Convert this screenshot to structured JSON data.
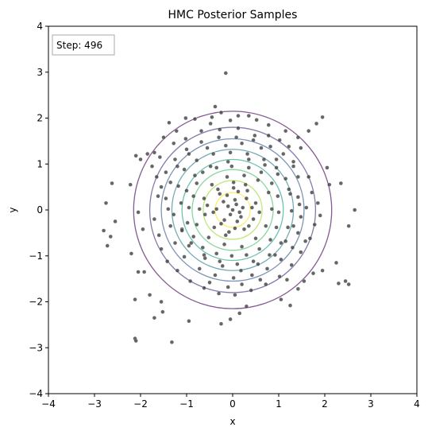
{
  "chart_data": {
    "type": "scatter",
    "title": "HMC Posterior Samples",
    "xlabel": "x",
    "ylabel": "y",
    "xlim": [
      -4,
      4
    ],
    "ylim": [
      -4,
      4
    ],
    "xticks": [
      -4,
      -3,
      -2,
      -1,
      0,
      1,
      2,
      3,
      4
    ],
    "yticks": [
      -4,
      -3,
      -2,
      -1,
      0,
      1,
      2,
      3,
      4
    ],
    "xtick_labels": [
      "−4",
      "−3",
      "−2",
      "−1",
      "0",
      "1",
      "2",
      "3",
      "4"
    ],
    "ytick_labels": [
      "−4",
      "−3",
      "−2",
      "−1",
      "0",
      "1",
      "2",
      "3",
      "4"
    ],
    "grid": false,
    "annotation": "Step: 496",
    "contours": {
      "center": [
        0,
        0
      ],
      "radii": [
        2.15,
        1.8,
        1.55,
        1.32,
        1.1,
        0.88,
        0.64,
        0.38
      ],
      "colors": [
        "#440154",
        "#46327e",
        "#365c8d",
        "#277f8e",
        "#1fa187",
        "#4ac16d",
        "#a0da39",
        "#fde725"
      ]
    },
    "point_color": "#404040",
    "series": [
      {
        "points": [
          [
            -0.15,
            2.98
          ],
          [
            -0.38,
            2.25
          ],
          [
            -0.45,
            2.02
          ],
          [
            -0.05,
            1.95
          ],
          [
            0.35,
            2.05
          ],
          [
            0.52,
            1.96
          ],
          [
            1.82,
            1.88
          ],
          [
            1.95,
            2.02
          ],
          [
            1.65,
            1.72
          ],
          [
            -0.48,
            1.88
          ],
          [
            -1.5,
            1.58
          ],
          [
            -1.7,
            1.25
          ],
          [
            -1.58,
            1.15
          ],
          [
            -1.28,
            1.45
          ],
          [
            -1.02,
            1.55
          ],
          [
            -0.68,
            1.72
          ],
          [
            -0.28,
            1.75
          ],
          [
            0.12,
            1.78
          ],
          [
            0.48,
            1.62
          ],
          [
            0.78,
            1.62
          ],
          [
            1.02,
            1.52
          ],
          [
            1.22,
            1.38
          ],
          [
            1.32,
            1.05
          ],
          [
            0.95,
            1.1
          ],
          [
            0.62,
            1.35
          ],
          [
            0.2,
            1.45
          ],
          [
            -0.15,
            1.4
          ],
          [
            -0.55,
            1.35
          ],
          [
            -0.95,
            1.22
          ],
          [
            -1.2,
            0.95
          ],
          [
            -1.35,
            0.6
          ],
          [
            -1.45,
            0.25
          ],
          [
            -1.28,
            -0.1
          ],
          [
            -1.1,
            -0.42
          ],
          [
            -0.95,
            -0.78
          ],
          [
            -0.6,
            -1.05
          ],
          [
            -0.22,
            -1.22
          ],
          [
            0.18,
            -1.32
          ],
          [
            0.55,
            -1.18
          ],
          [
            0.92,
            -0.98
          ],
          [
            1.15,
            -0.68
          ],
          [
            1.32,
            -0.35
          ],
          [
            1.45,
            0.12
          ],
          [
            1.22,
            0.45
          ],
          [
            0.98,
            0.78
          ],
          [
            0.7,
            0.98
          ],
          [
            0.35,
            1.1
          ],
          [
            -0.1,
            1.05
          ],
          [
            -0.48,
            0.95
          ],
          [
            -0.82,
            0.75
          ],
          [
            -1.0,
            0.42
          ],
          [
            -0.95,
            0.05
          ],
          [
            -0.78,
            -0.32
          ],
          [
            -0.52,
            -0.6
          ],
          [
            -0.18,
            -0.75
          ],
          [
            0.2,
            -0.8
          ],
          [
            0.5,
            -0.62
          ],
          [
            0.72,
            -0.35
          ],
          [
            0.85,
            0.02
          ],
          [
            0.78,
            0.38
          ],
          [
            0.55,
            0.65
          ],
          [
            0.25,
            0.75
          ],
          [
            -0.12,
            0.72
          ],
          [
            -0.45,
            0.55
          ],
          [
            -0.62,
            0.25
          ],
          [
            -0.6,
            -0.1
          ],
          [
            -0.4,
            -0.38
          ],
          [
            -0.08,
            -0.48
          ],
          [
            0.25,
            -0.42
          ],
          [
            0.45,
            -0.2
          ],
          [
            0.5,
            0.15
          ],
          [
            0.32,
            0.42
          ],
          [
            0.02,
            0.48
          ],
          [
            -0.28,
            0.35
          ],
          [
            -0.35,
            0.02
          ],
          [
            -0.18,
            -0.22
          ],
          [
            0.1,
            -0.25
          ],
          [
            0.22,
            0.05
          ],
          [
            0.05,
            0.22
          ],
          [
            -0.1,
            0.08
          ],
          [
            0.0,
            0.0
          ],
          [
            0.15,
            -0.05
          ],
          [
            -0.05,
            -0.1
          ],
          [
            0.08,
            0.12
          ],
          [
            -0.2,
            0.18
          ],
          [
            0.3,
            0.25
          ],
          [
            -0.25,
            -0.3
          ],
          [
            0.35,
            -0.35
          ],
          [
            0.12,
            0.4
          ],
          [
            -0.32,
            0.45
          ],
          [
            0.18,
            -0.15
          ],
          [
            -0.12,
            0.32
          ],
          [
            0.42,
            0.05
          ],
          [
            -0.42,
            -0.05
          ],
          [
            0.05,
            -0.4
          ],
          [
            0.28,
            0.55
          ],
          [
            -0.15,
            -0.55
          ],
          [
            0.58,
            -0.05
          ],
          [
            -0.55,
            0.1
          ],
          [
            0.02,
            0.6
          ],
          [
            -2.75,
            0.15
          ],
          [
            -2.8,
            -0.45
          ],
          [
            -2.72,
            -0.78
          ],
          [
            -2.65,
            -0.58
          ],
          [
            -2.55,
            -0.25
          ],
          [
            -2.62,
            0.58
          ],
          [
            -2.22,
            0.55
          ],
          [
            -2.1,
            1.18
          ],
          [
            -2.0,
            1.1
          ],
          [
            -1.85,
            1.22
          ],
          [
            -2.05,
            -0.05
          ],
          [
            -1.95,
            -0.42
          ],
          [
            -2.2,
            -0.95
          ],
          [
            -2.05,
            -1.35
          ],
          [
            -1.92,
            -1.35
          ],
          [
            -2.12,
            -1.95
          ],
          [
            -1.8,
            -1.85
          ],
          [
            -1.55,
            -2.0
          ],
          [
            -1.52,
            -2.22
          ],
          [
            -1.7,
            -2.35
          ],
          [
            -2.12,
            -2.8
          ],
          [
            -2.1,
            -2.85
          ],
          [
            -1.32,
            -2.88
          ],
          [
            -0.95,
            -2.42
          ],
          [
            -0.25,
            -2.48
          ],
          [
            -0.05,
            -2.38
          ],
          [
            0.15,
            -2.25
          ],
          [
            0.3,
            -2.1
          ],
          [
            1.05,
            -1.95
          ],
          [
            1.25,
            -2.08
          ],
          [
            1.42,
            -1.72
          ],
          [
            1.55,
            -1.55
          ],
          [
            1.75,
            -1.38
          ],
          [
            1.95,
            -1.32
          ],
          [
            2.25,
            -1.15
          ],
          [
            2.3,
            -1.6
          ],
          [
            2.45,
            -1.55
          ],
          [
            2.52,
            -1.62
          ],
          [
            2.35,
            0.58
          ],
          [
            2.65,
            0.0
          ],
          [
            2.52,
            -0.35
          ],
          [
            2.05,
            0.92
          ],
          [
            2.1,
            0.55
          ],
          [
            1.72,
            0.38
          ],
          [
            1.65,
            0.72
          ],
          [
            1.78,
            -0.32
          ],
          [
            1.68,
            -0.62
          ],
          [
            1.6,
            0.05
          ],
          [
            1.85,
            0.15
          ],
          [
            1.9,
            -0.12
          ],
          [
            -1.75,
            0.95
          ],
          [
            -1.65,
            0.72
          ],
          [
            -1.62,
            0.3
          ],
          [
            -1.7,
            -0.2
          ],
          [
            -1.6,
            -0.55
          ],
          [
            -1.55,
            -0.85
          ],
          [
            -1.42,
            -1.12
          ],
          [
            -1.2,
            -1.32
          ],
          [
            -0.92,
            -1.55
          ],
          [
            -0.62,
            -1.7
          ],
          [
            -0.3,
            -1.82
          ],
          [
            0.05,
            -1.85
          ],
          [
            0.4,
            -1.75
          ],
          [
            0.72,
            -1.62
          ],
          [
            1.02,
            -1.45
          ],
          [
            1.28,
            -1.2
          ],
          [
            1.48,
            -0.92
          ],
          [
            1.58,
            -0.68
          ],
          [
            1.42,
            0.72
          ],
          [
            1.32,
            0.95
          ],
          [
            1.1,
            1.22
          ],
          [
            0.82,
            1.38
          ],
          [
            0.45,
            1.52
          ],
          [
            0.08,
            1.58
          ],
          [
            -0.3,
            1.58
          ],
          [
            -0.68,
            1.48
          ],
          [
            -1.0,
            1.32
          ],
          [
            -1.25,
            1.1
          ],
          [
            -1.45,
            0.82
          ],
          [
            -1.55,
            0.5
          ],
          [
            -0.25,
            2.12
          ],
          [
            0.12,
            2.05
          ],
          [
            -0.82,
            1.98
          ],
          [
            -1.22,
            1.72
          ],
          [
            -1.38,
            1.9
          ],
          [
            -1.02,
            2.0
          ],
          [
            0.78,
            1.85
          ],
          [
            1.15,
            1.72
          ],
          [
            1.42,
            1.58
          ],
          [
            1.48,
            1.35
          ],
          [
            -0.72,
            0.02
          ],
          [
            -0.85,
            0.3
          ],
          [
            -0.78,
            0.58
          ],
          [
            -0.65,
            0.82
          ],
          [
            -0.35,
            0.92
          ],
          [
            -0.02,
            0.95
          ],
          [
            0.35,
            0.92
          ],
          [
            0.62,
            0.82
          ],
          [
            0.85,
            0.58
          ],
          [
            0.98,
            0.3
          ],
          [
            1.0,
            -0.05
          ],
          [
            0.95,
            -0.38
          ],
          [
            0.82,
            -0.65
          ],
          [
            0.58,
            -0.85
          ],
          [
            0.3,
            -0.98
          ],
          [
            -0.02,
            -1.0
          ],
          [
            -0.35,
            -0.95
          ],
          [
            -0.65,
            -0.82
          ],
          [
            -0.85,
            -0.58
          ],
          [
            -0.98,
            -0.28
          ],
          [
            -1.12,
            0.15
          ],
          [
            -1.18,
            0.52
          ],
          [
            -1.05,
            0.88
          ],
          [
            -0.78,
            1.08
          ],
          [
            -0.42,
            1.22
          ],
          [
            -0.05,
            1.25
          ],
          [
            0.32,
            1.22
          ],
          [
            0.68,
            1.1
          ],
          [
            0.95,
            0.92
          ],
          [
            1.15,
            0.68
          ],
          [
            1.25,
            0.35
          ],
          [
            1.28,
            -0.02
          ],
          [
            1.2,
            -0.38
          ],
          [
            1.05,
            -0.72
          ],
          [
            0.8,
            -0.98
          ],
          [
            0.45,
            -1.12
          ],
          [
            0.1,
            -1.18
          ],
          [
            -0.28,
            -1.12
          ],
          [
            -0.62,
            -0.98
          ],
          [
            -0.9,
            -0.72
          ],
          [
            -1.1,
            -0.45
          ],
          [
            -1.25,
            -0.72
          ],
          [
            -1.35,
            -0.35
          ],
          [
            -1.4,
            0.02
          ],
          [
            -1.05,
            -1.02
          ],
          [
            -0.72,
            -1.28
          ],
          [
            -0.38,
            -1.42
          ],
          [
            0.02,
            -1.48
          ],
          [
            0.42,
            -1.42
          ],
          [
            0.75,
            -1.28
          ],
          [
            1.05,
            -1.08
          ],
          [
            1.3,
            -0.82
          ],
          [
            1.42,
            -0.5
          ],
          [
            1.48,
            -0.15
          ],
          [
            1.42,
            0.28
          ],
          [
            0.2,
            -1.62
          ],
          [
            -0.1,
            -1.68
          ],
          [
            0.6,
            -1.52
          ],
          [
            -0.5,
            -1.58
          ],
          [
            1.18,
            -1.52
          ]
        ]
      }
    ]
  }
}
